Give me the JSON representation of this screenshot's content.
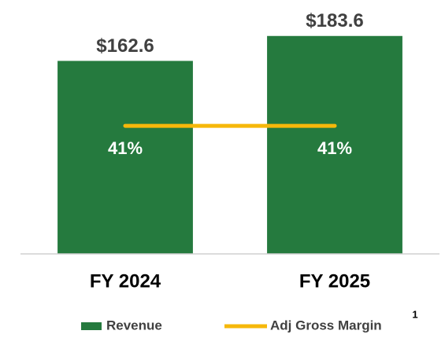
{
  "chart_data": {
    "type": "bar-line",
    "categories": [
      "FY 2024",
      "FY 2025"
    ],
    "series": [
      {
        "name": "Revenue",
        "type": "bar",
        "color": "#257a3e",
        "values": [
          162.6,
          183.6
        ],
        "value_labels": [
          "$162.6",
          "$183.6"
        ]
      },
      {
        "name": "Adj Gross Margin",
        "type": "line",
        "axis": "y2",
        "color": "#f6b80a",
        "values": [
          41,
          41
        ],
        "value_labels": [
          "41%",
          "41%"
        ]
      }
    ],
    "ylim": [
      0,
      200
    ],
    "y2lim": [
      0,
      76
    ],
    "legend": "bottom",
    "footnote": "1"
  }
}
